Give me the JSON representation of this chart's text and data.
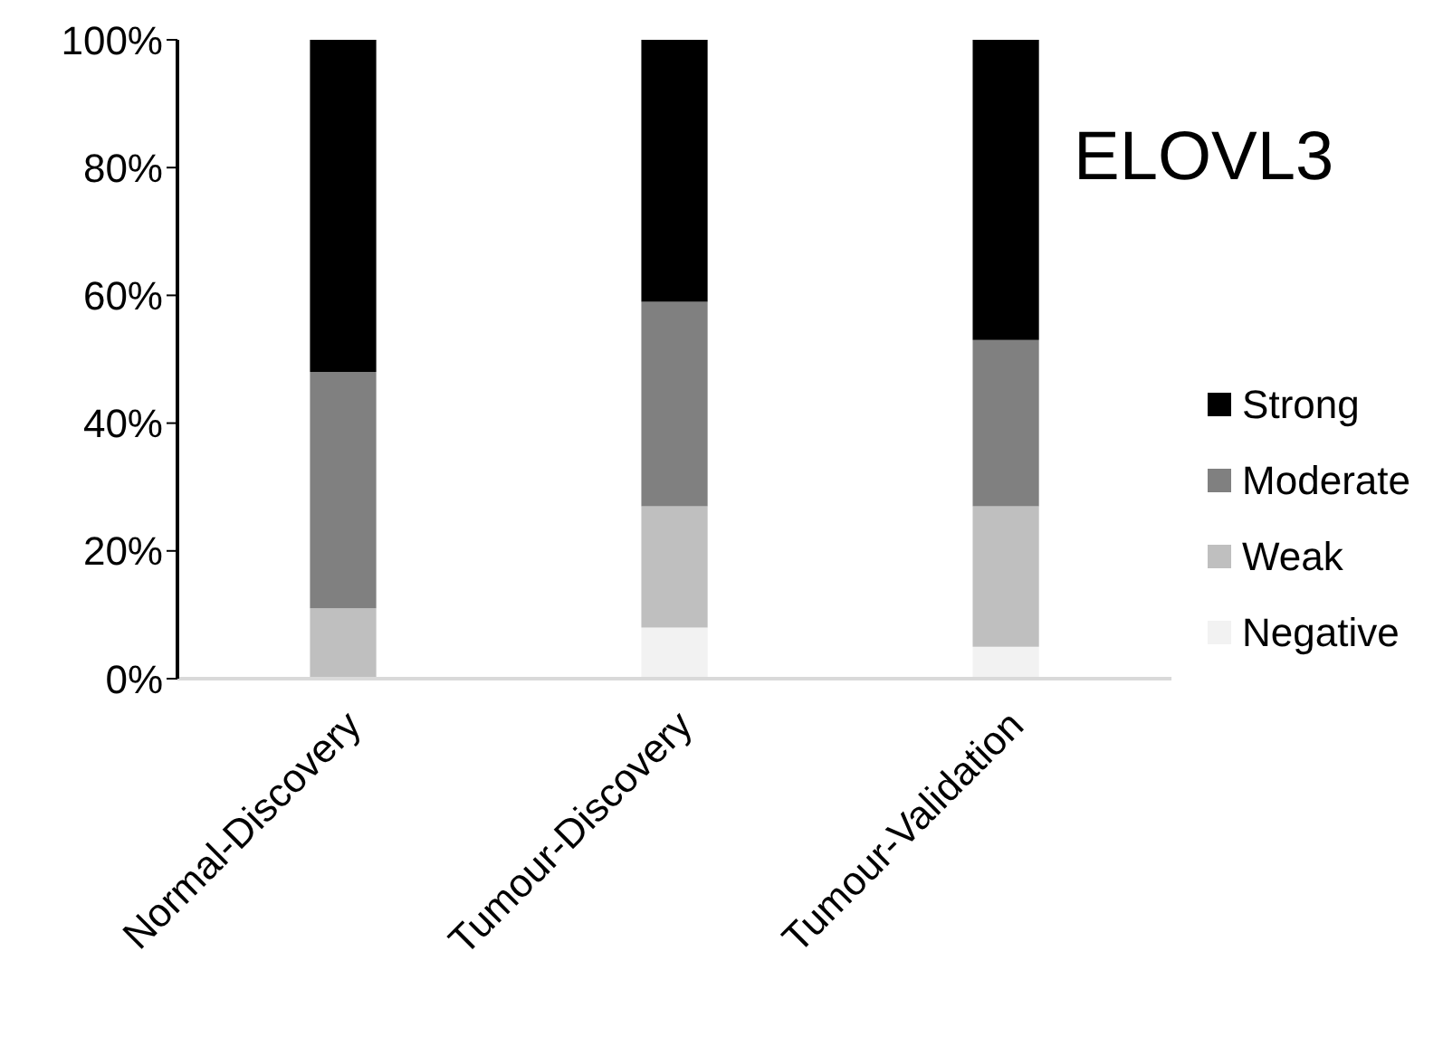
{
  "chart_data": {
    "type": "bar",
    "title": "ELOVL3",
    "stacked": true,
    "categories": [
      "Normal-Discovery",
      "Tumour-Discovery",
      "Tumour-Validation"
    ],
    "series": [
      {
        "name": "Negative",
        "color": "#f2f2f2",
        "values": [
          0,
          8,
          5
        ]
      },
      {
        "name": "Weak",
        "color": "#bfbfbf",
        "values": [
          11,
          19,
          22
        ]
      },
      {
        "name": "Moderate",
        "color": "#808080",
        "values": [
          37,
          32,
          26
        ]
      },
      {
        "name": "Strong",
        "color": "#000000",
        "values": [
          52,
          41,
          47
        ]
      }
    ],
    "ylim": [
      0,
      100
    ],
    "yticks": [
      {
        "value": 0,
        "label": "0%"
      },
      {
        "value": 20,
        "label": "20%"
      },
      {
        "value": 40,
        "label": "40%"
      },
      {
        "value": 60,
        "label": "60%"
      },
      {
        "value": 80,
        "label": "80%"
      },
      {
        "value": 100,
        "label": "100%"
      }
    ],
    "grid": false,
    "legend": "right"
  }
}
